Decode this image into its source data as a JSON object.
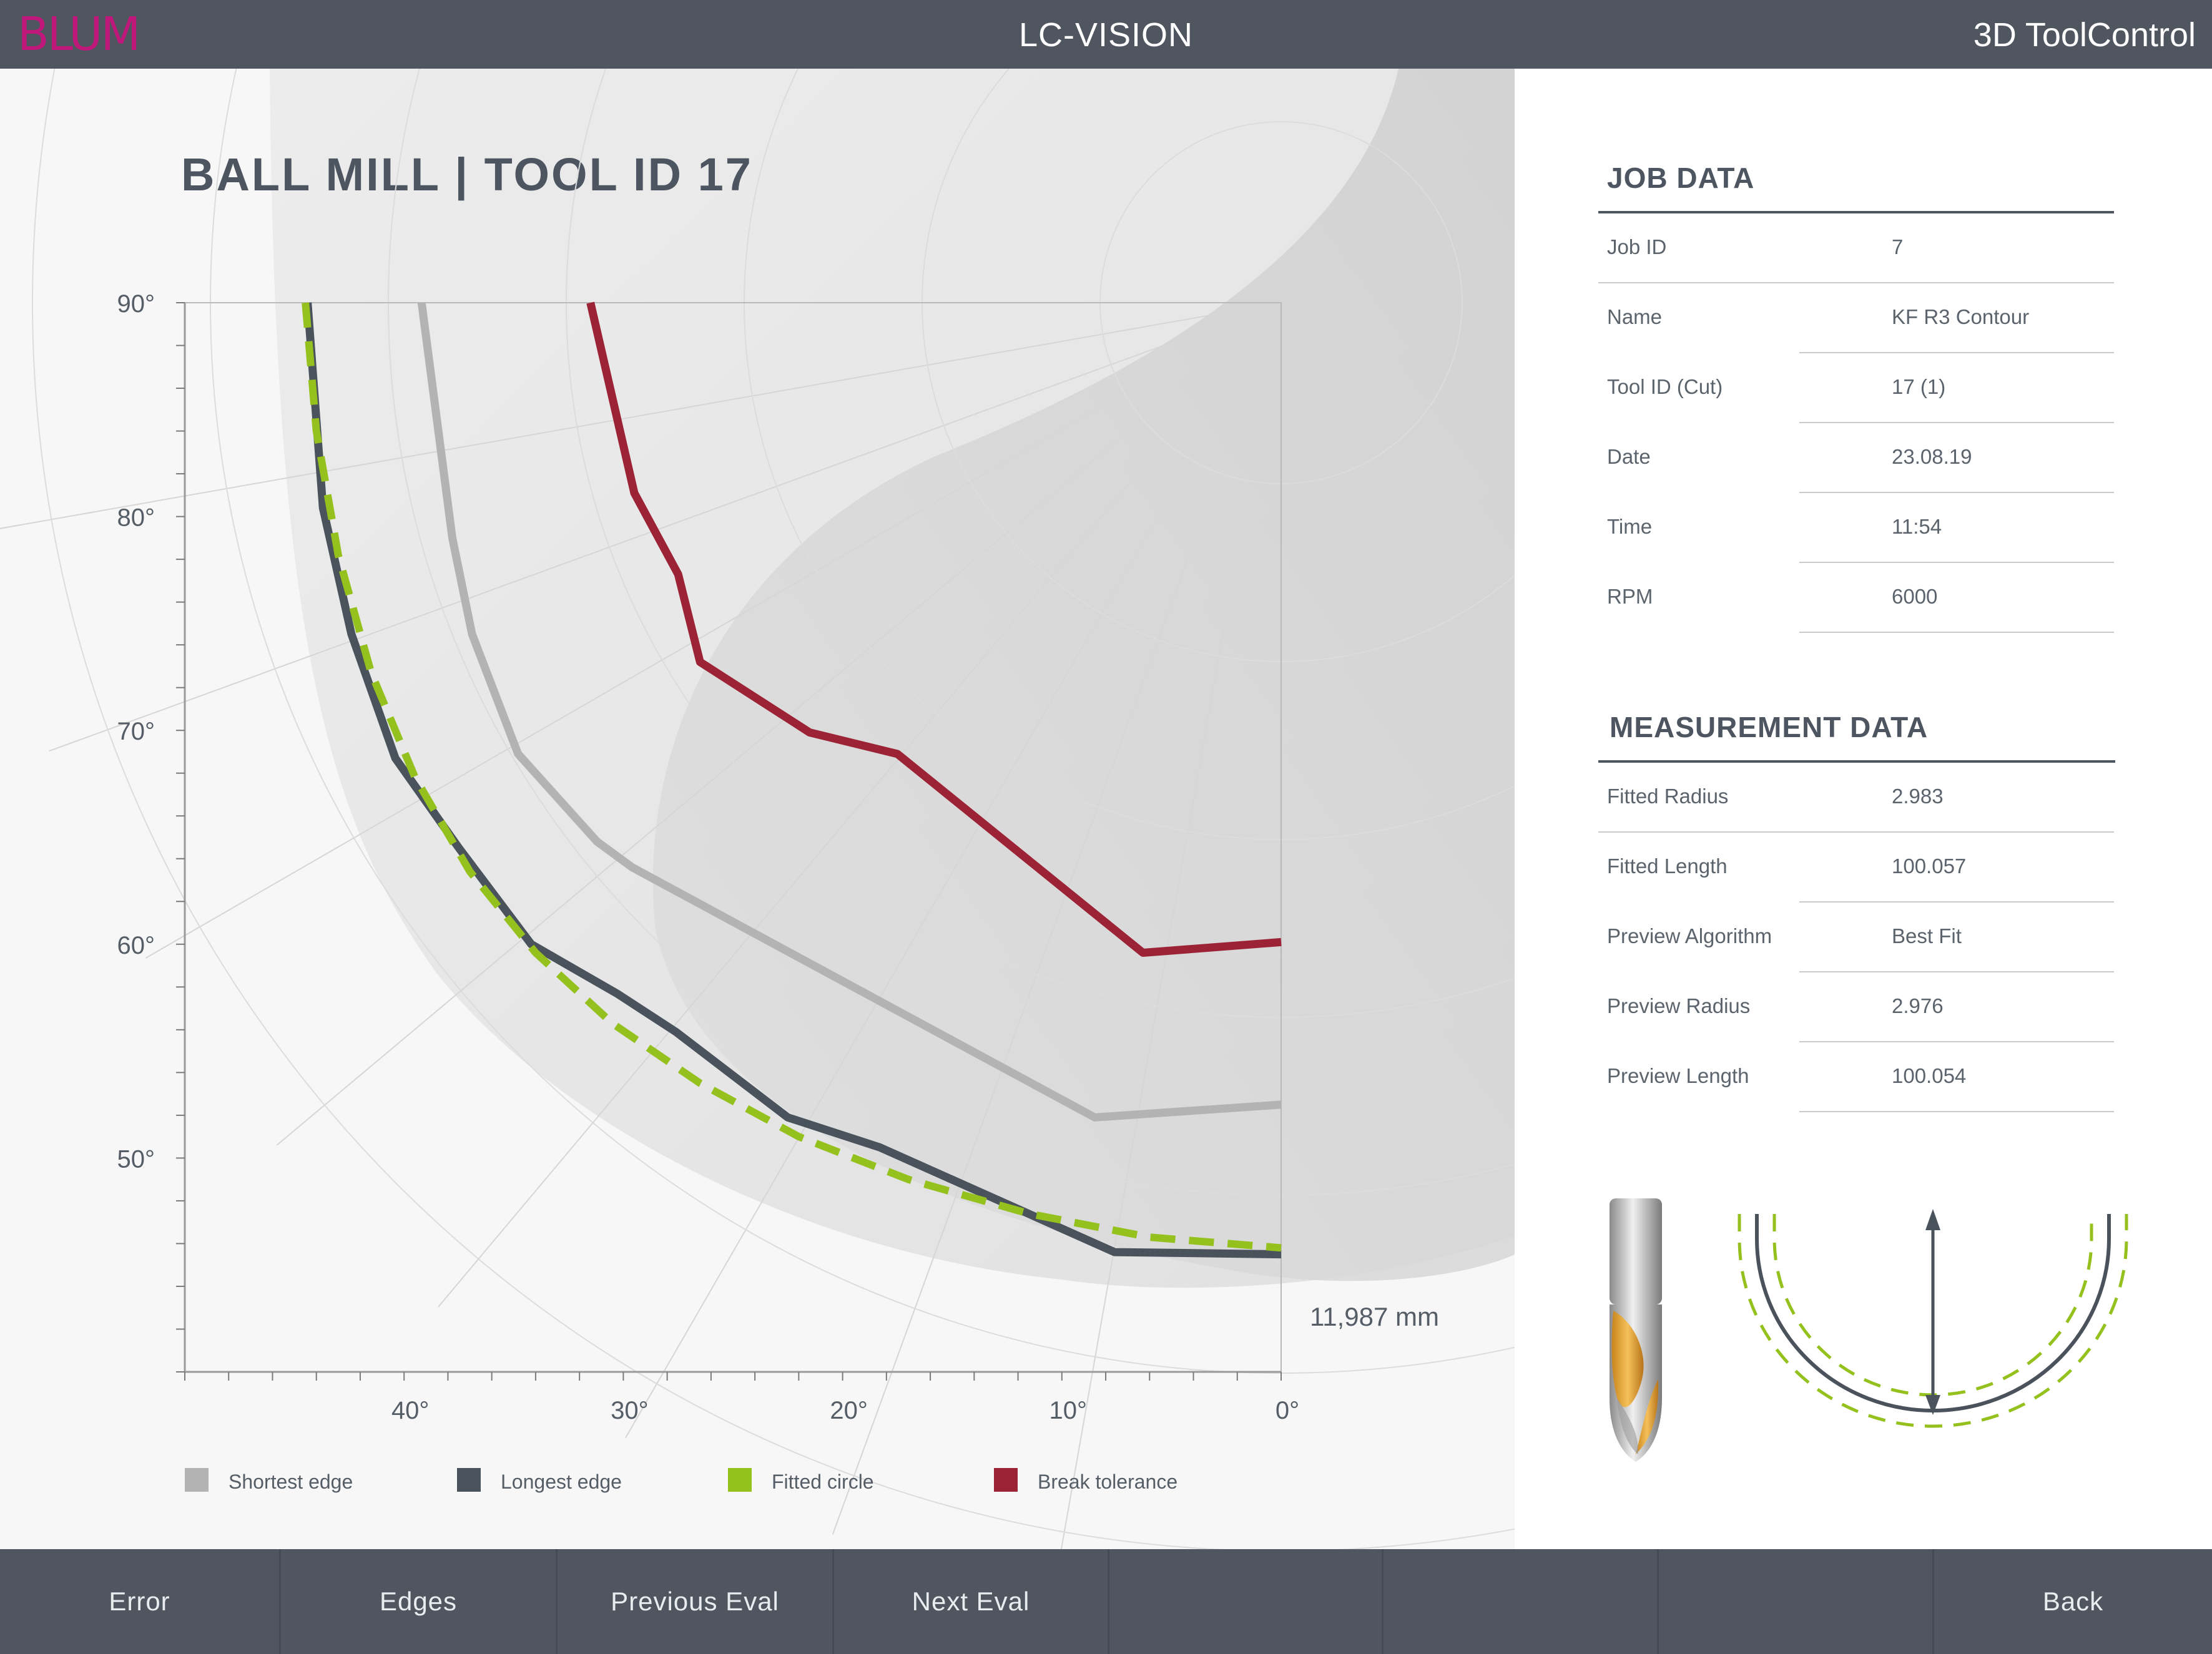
{
  "header": {
    "logo": "BLUM",
    "app_title": "LC-VISION",
    "product_name": "3D ToolControl"
  },
  "main": {
    "title": "BALL MILL | TOOL ID 17",
    "distance_label": "11,987 mm",
    "legend": [
      {
        "label": "Shortest edge",
        "color": "#b3b3b3"
      },
      {
        "label": "Longest edge",
        "color": "#4a525c"
      },
      {
        "label": "Fitted circle",
        "color": "#95c11f"
      },
      {
        "label": "Break tolerance",
        "color": "#9b2335"
      }
    ]
  },
  "chart_data": {
    "type": "line",
    "title": "BALL MILL | TOOL ID 17",
    "xlabel": "",
    "ylabel": "",
    "x_ticks": [
      "40°",
      "30°",
      "20°",
      "10°",
      "0°"
    ],
    "y_ticks": [
      "90°",
      "80°",
      "70°",
      "60°",
      "50°"
    ],
    "xlim": [
      50,
      0
    ],
    "ylim": [
      40,
      90
    ],
    "grid": true,
    "legend_position": "bottom",
    "series": [
      {
        "name": "Shortest edge",
        "color": "#b3b3b3",
        "x": [
          39.2,
          37.8,
          36.9,
          34.8,
          31.2,
          29.6,
          8.5,
          0
        ],
        "y": [
          90,
          79.0,
          74.5,
          68.9,
          64.8,
          63.6,
          51.9,
          52.5
        ]
      },
      {
        "name": "Longest edge",
        "color": "#4a525c",
        "x": [
          44.4,
          43.7,
          42.4,
          40.4,
          37.5,
          34.2,
          30.3,
          27.6,
          22.5,
          18.3,
          7.6,
          0
        ],
        "y": [
          90,
          80.4,
          74.5,
          68.7,
          64.5,
          60.0,
          57.7,
          55.9,
          51.9,
          50.5,
          45.6,
          45.5
        ]
      },
      {
        "name": "Fitted circle",
        "color": "#95c11f",
        "x": [
          44.5,
          44.0,
          43.0,
          41.5,
          39.5,
          37.0,
          34.0,
          30.5,
          26.5,
          22.0,
          17.0,
          11.5,
          6.0,
          0
        ],
        "y": [
          90,
          84.0,
          78.2,
          72.7,
          67.8,
          63.4,
          59.6,
          56.3,
          53.5,
          51.0,
          49.0,
          47.4,
          46.3,
          45.8
        ]
      },
      {
        "name": "Break tolerance",
        "color": "#9b2335",
        "x": [
          31.5,
          29.5,
          27.5,
          26.5,
          21.5,
          17.5,
          6.3,
          0
        ],
        "y": [
          90,
          81.1,
          77.3,
          73.2,
          69.9,
          68.9,
          59.6,
          60.1
        ]
      }
    ]
  },
  "job_data": {
    "title": "JOB DATA",
    "rows": [
      {
        "label": "Job ID",
        "value": "7"
      },
      {
        "label": "Name",
        "value": "KF R3 Contour"
      },
      {
        "label": "Tool ID (Cut)",
        "value": "17 (1)"
      },
      {
        "label": "Date",
        "value": "23.08.19"
      },
      {
        "label": "Time",
        "value": "11:54"
      },
      {
        "label": "RPM",
        "value": "6000"
      }
    ]
  },
  "measurement_data": {
    "title": "MEASUREMENT DATA",
    "rows": [
      {
        "label": "Fitted Radius",
        "value": "2.983"
      },
      {
        "label": "Fitted Length",
        "value": "100.057"
      },
      {
        "label": "Preview Algorithm",
        "value": "Best Fit"
      },
      {
        "label": "Preview Radius",
        "value": "2.976"
      },
      {
        "label": "Preview Length",
        "value": "100.054"
      }
    ]
  },
  "footer": {
    "buttons": [
      "Error",
      "Edges",
      "Previous Eval",
      "Next Eval",
      "",
      "",
      "",
      "Back"
    ]
  },
  "icons": {
    "tool": "ball-mill-tool-icon",
    "profile": "fitted-radius-diagram-icon"
  }
}
